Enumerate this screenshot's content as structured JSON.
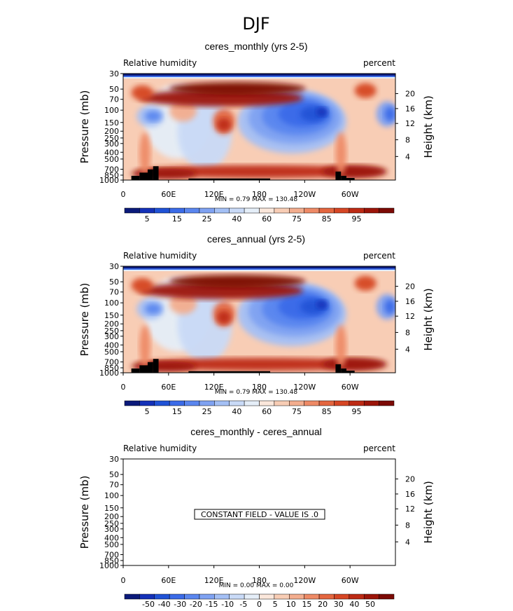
{
  "figure": {
    "suptitle": "DJF"
  },
  "colormaps": {
    "rh": [
      "#0b1a7a",
      "#1431b8",
      "#2052d6",
      "#3b6be8",
      "#5a86ef",
      "#7fa2f2",
      "#a4c0f5",
      "#c9daf7",
      "#e5eef8",
      "#fbe7db",
      "#f8cdb5",
      "#f3ad8e",
      "#ee8a66",
      "#e4663f",
      "#d64624",
      "#bd2a14",
      "#9c1409",
      "#7c0a05"
    ],
    "diff": [
      "#0b1a7a",
      "#1431b8",
      "#2052d6",
      "#3b6be8",
      "#5a86ef",
      "#7fa2f2",
      "#a4c0f5",
      "#c9daf7",
      "#e5eef8",
      "#fbe7db",
      "#f8cdb5",
      "#f3ad8e",
      "#ee8a66",
      "#e4663f",
      "#d64624",
      "#bd2a14",
      "#9c1409",
      "#7c0a05"
    ]
  },
  "panels": [
    {
      "title": "ceres_monthly (yrs 2-5)",
      "left_label": "Relative humidity",
      "right_label": "percent",
      "y_label": "Pressure (mb)",
      "y2_label": "Height (km)",
      "minmax": "MIN =    0.79   MAX = 130.48",
      "colorbar": "rh",
      "colorbar_labels": [
        "5",
        "15",
        "25",
        "40",
        "60",
        "75",
        "85",
        "95"
      ],
      "constant_field": null
    },
    {
      "title": "ceres_annual (yrs 2-5)",
      "left_label": "Relative humidity",
      "right_label": "percent",
      "y_label": "Pressure (mb)",
      "y2_label": "Height (km)",
      "minmax": "MIN =    0.79   MAX = 130.48",
      "colorbar": "rh",
      "colorbar_labels": [
        "5",
        "15",
        "25",
        "40",
        "60",
        "75",
        "85",
        "95"
      ],
      "constant_field": null
    },
    {
      "title": "ceres_monthly - ceres_annual",
      "left_label": "Relative humidity",
      "right_label": "percent",
      "y_label": "Pressure (mb)",
      "y2_label": "Height (km)",
      "minmax": "MIN =    0.00   MAX =    0.00",
      "colorbar": "diff",
      "colorbar_labels": [
        "-50",
        "-40",
        "-30",
        "-20",
        "-15",
        "-10",
        "-5",
        "0",
        "5",
        "10",
        "15",
        "20",
        "30",
        "40",
        "50"
      ],
      "constant_field": "CONSTANT FIELD - VALUE IS .0"
    }
  ],
  "chart_data": [
    {
      "type": "heatmap",
      "title": "ceres_monthly (yrs 2-5)",
      "subtitle_left": "Relative humidity",
      "subtitle_right": "percent",
      "ylabel": "Pressure (mb)",
      "y2label": "Height (km)",
      "x_ticks": [
        "0",
        "60E",
        "120E",
        "180",
        "120W",
        "60W"
      ],
      "x_tick_values": [
        0,
        60,
        120,
        180,
        240,
        300
      ],
      "xlim": [
        0,
        360
      ],
      "y_ticks": [
        "30",
        "50",
        "70",
        "100",
        "150",
        "200",
        "250",
        "300",
        "400",
        "500",
        "700",
        "850",
        "1000"
      ],
      "y_tick_values": [
        30,
        50,
        70,
        100,
        150,
        200,
        250,
        300,
        400,
        500,
        700,
        850,
        1000
      ],
      "ylim": [
        1000,
        30
      ],
      "y2_ticks": [
        "20",
        "16",
        "12",
        "8",
        "4"
      ],
      "y2_tick_values": [
        20,
        16,
        12,
        8,
        4
      ],
      "min": 0.79,
      "max": 130.48,
      "levels": [
        5,
        10,
        15,
        20,
        25,
        30,
        40,
        50,
        60,
        70,
        75,
        80,
        85,
        90,
        95,
        100,
        110
      ],
      "colorbar_labels": [
        "5",
        "15",
        "25",
        "40",
        "60",
        "75",
        "85",
        "95"
      ]
    },
    {
      "type": "heatmap",
      "title": "ceres_annual (yrs 2-5)",
      "subtitle_left": "Relative humidity",
      "subtitle_right": "percent",
      "ylabel": "Pressure (mb)",
      "y2label": "Height (km)",
      "x_ticks": [
        "0",
        "60E",
        "120E",
        "180",
        "120W",
        "60W"
      ],
      "x_tick_values": [
        0,
        60,
        120,
        180,
        240,
        300
      ],
      "xlim": [
        0,
        360
      ],
      "y_ticks": [
        "30",
        "50",
        "70",
        "100",
        "150",
        "200",
        "250",
        "300",
        "400",
        "500",
        "700",
        "850",
        "1000"
      ],
      "y_tick_values": [
        30,
        50,
        70,
        100,
        150,
        200,
        250,
        300,
        400,
        500,
        700,
        850,
        1000
      ],
      "ylim": [
        1000,
        30
      ],
      "y2_ticks": [
        "20",
        "16",
        "12",
        "8",
        "4"
      ],
      "y2_tick_values": [
        20,
        16,
        12,
        8,
        4
      ],
      "min": 0.79,
      "max": 130.48,
      "levels": [
        5,
        10,
        15,
        20,
        25,
        30,
        40,
        50,
        60,
        70,
        75,
        80,
        85,
        90,
        95,
        100,
        110
      ],
      "colorbar_labels": [
        "5",
        "15",
        "25",
        "40",
        "60",
        "75",
        "85",
        "95"
      ]
    },
    {
      "type": "heatmap",
      "title": "ceres_monthly - ceres_annual",
      "subtitle_left": "Relative humidity",
      "subtitle_right": "percent",
      "ylabel": "Pressure (mb)",
      "y2label": "Height (km)",
      "x_ticks": [
        "0",
        "60E",
        "120E",
        "180",
        "120W",
        "60W"
      ],
      "x_tick_values": [
        0,
        60,
        120,
        180,
        240,
        300
      ],
      "xlim": [
        0,
        360
      ],
      "y_ticks": [
        "30",
        "50",
        "70",
        "100",
        "150",
        "200",
        "250",
        "300",
        "400",
        "500",
        "700",
        "850",
        "1000"
      ],
      "y_tick_values": [
        30,
        50,
        70,
        100,
        150,
        200,
        250,
        300,
        400,
        500,
        700,
        850,
        1000
      ],
      "ylim": [
        1000,
        30
      ],
      "y2_ticks": [
        "20",
        "16",
        "12",
        "8",
        "4"
      ],
      "y2_tick_values": [
        20,
        16,
        12,
        8,
        4
      ],
      "min": 0.0,
      "max": 0.0,
      "constant_value": 0.0,
      "annotation": "CONSTANT FIELD - VALUE IS .0",
      "levels": [
        -50,
        -40,
        -30,
        -20,
        -15,
        -10,
        -5,
        0,
        5,
        10,
        15,
        20,
        30,
        40,
        50
      ],
      "colorbar_labels": [
        "-50",
        "-40",
        "-30",
        "-20",
        "-15",
        "-10",
        "-5",
        "0",
        "5",
        "10",
        "15",
        "20",
        "30",
        "40",
        "50"
      ]
    }
  ]
}
